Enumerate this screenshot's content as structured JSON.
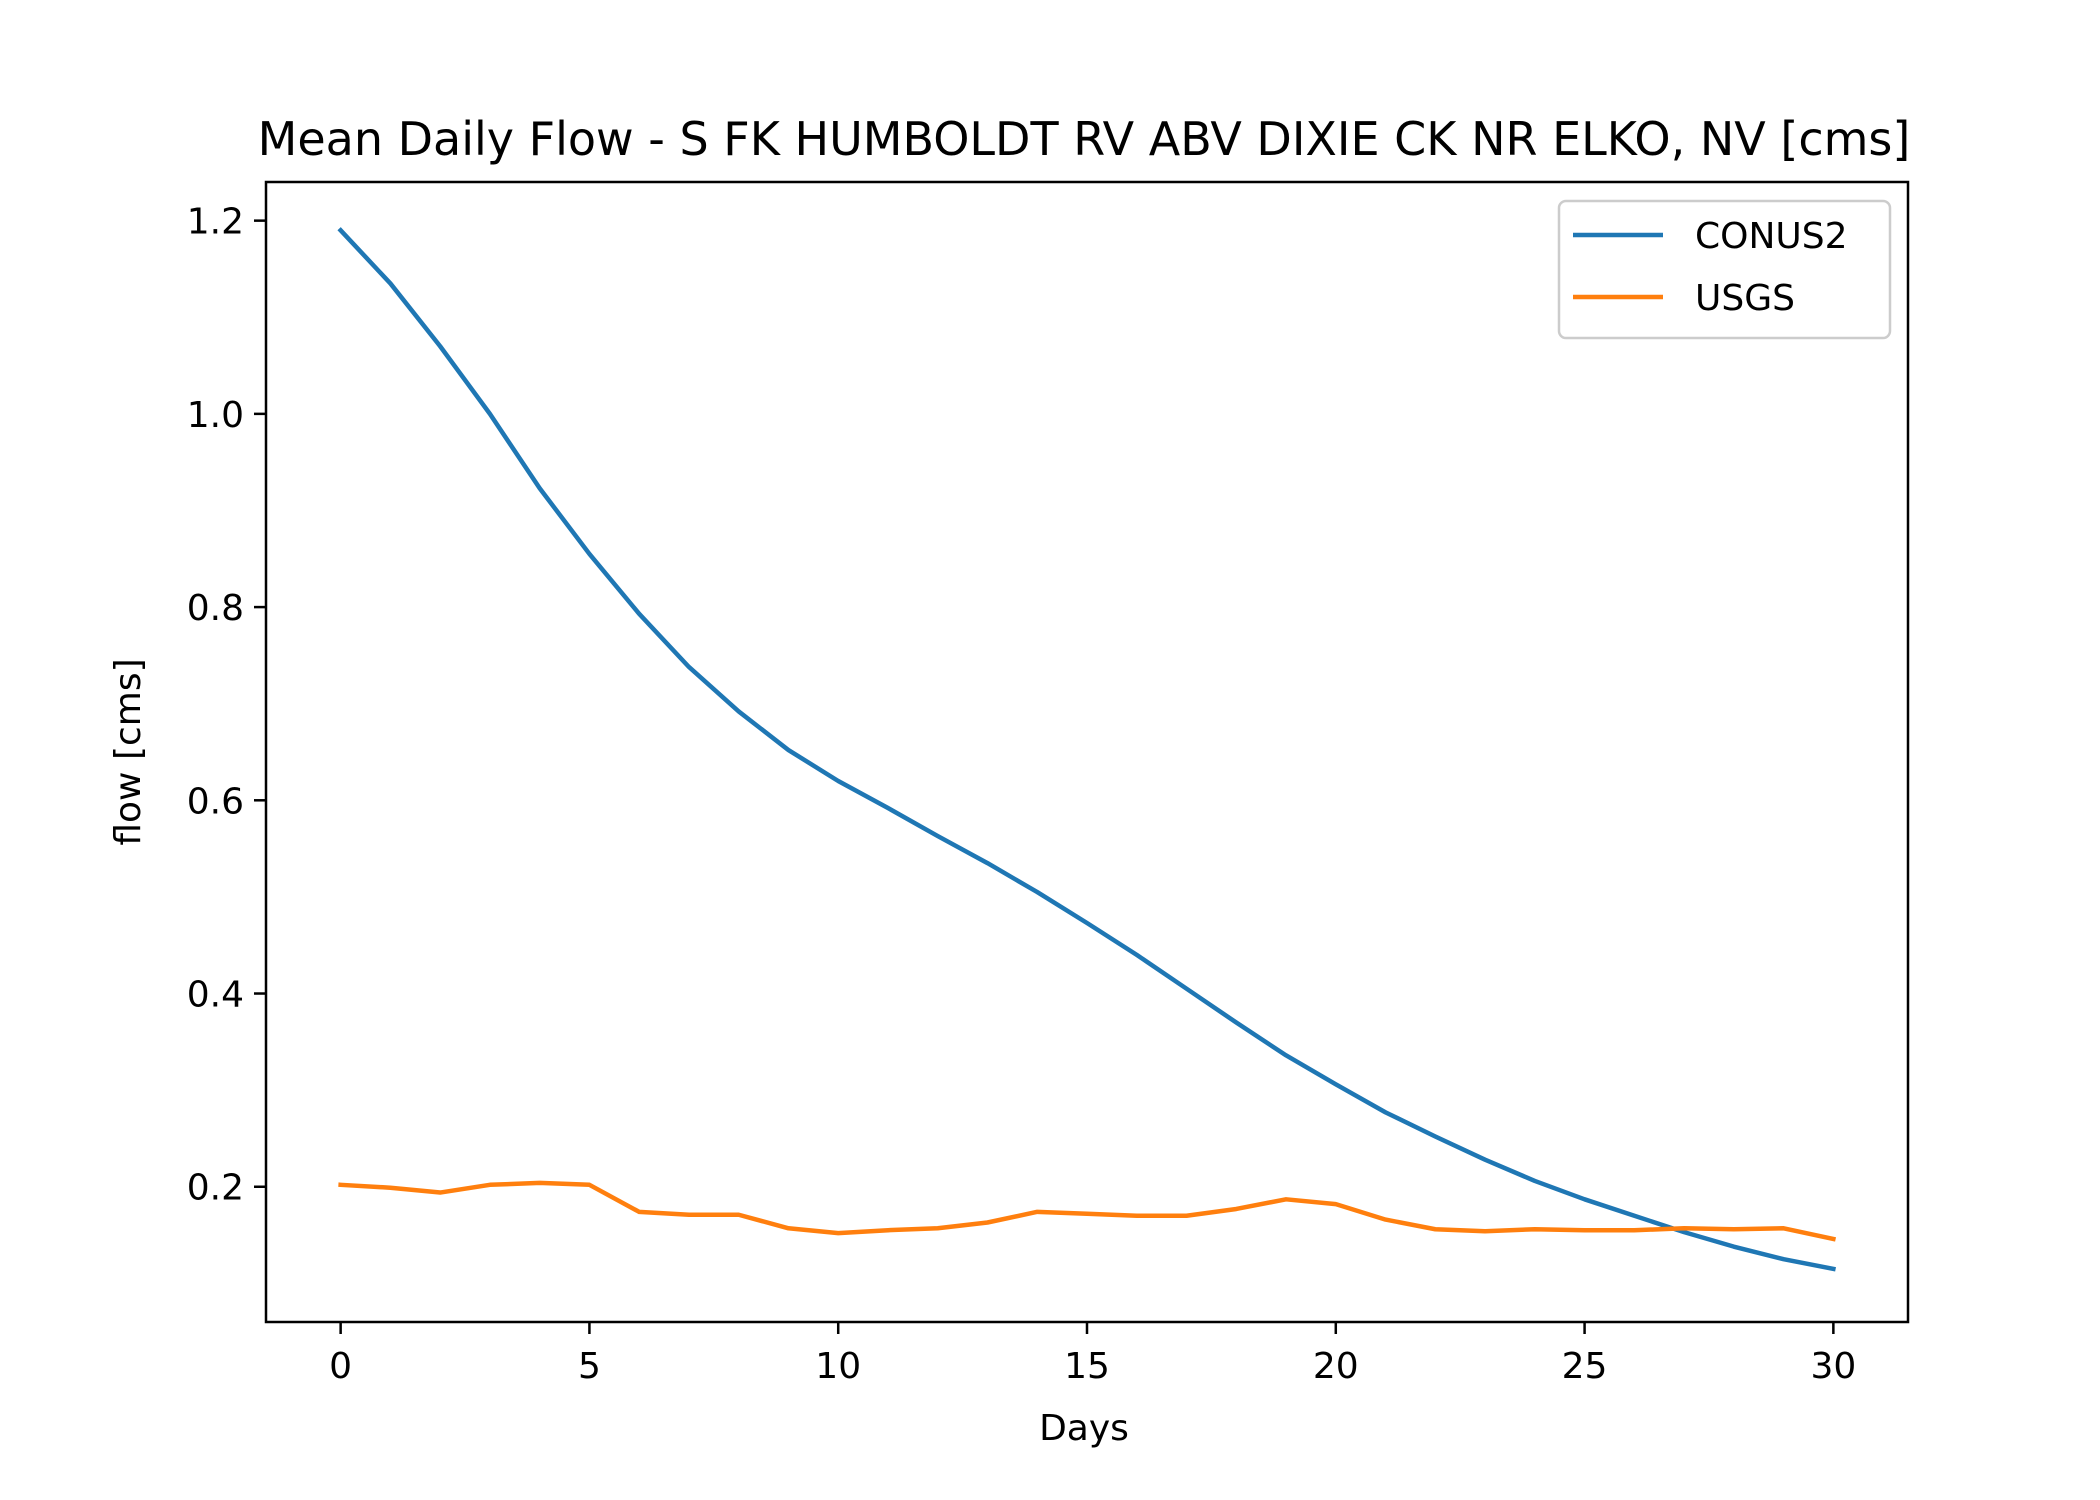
{
  "chart_data": {
    "type": "line",
    "title": "Mean Daily Flow - S FK HUMBOLDT RV ABV DIXIE CK NR ELKO, NV [cms]",
    "xlabel": "Days",
    "ylabel": "flow [cms]",
    "xlim": [
      -1.5,
      31.5
    ],
    "ylim": [
      0.06,
      1.24
    ],
    "xticks": [
      0,
      5,
      10,
      15,
      20,
      25,
      30
    ],
    "xtick_labels": [
      "0",
      "5",
      "10",
      "15",
      "20",
      "25",
      "30"
    ],
    "yticks": [
      0.2,
      0.4,
      0.6,
      0.8,
      1.0,
      1.2
    ],
    "ytick_labels": [
      "0.2",
      "0.4",
      "0.6",
      "0.8",
      "1.0",
      "1.2"
    ],
    "grid": false,
    "legend_position": "top-right",
    "x": [
      0,
      1,
      2,
      3,
      4,
      5,
      6,
      7,
      8,
      9,
      10,
      11,
      12,
      13,
      14,
      15,
      16,
      17,
      18,
      19,
      20,
      21,
      22,
      23,
      24,
      25,
      26,
      27,
      28,
      29,
      30
    ],
    "series": [
      {
        "name": "CONUS2",
        "color": "#1f77b4",
        "values": [
          1.19,
          1.135,
          1.07,
          1.0,
          0.923,
          0.855,
          0.793,
          0.738,
          0.692,
          0.652,
          0.62,
          0.592,
          0.563,
          0.535,
          0.505,
          0.473,
          0.44,
          0.405,
          0.37,
          0.336,
          0.306,
          0.277,
          0.252,
          0.228,
          0.206,
          0.187,
          0.17,
          0.153,
          0.138,
          0.125,
          0.115
        ]
      },
      {
        "name": "USGS",
        "color": "#ff7f0e",
        "values": [
          0.202,
          0.199,
          0.194,
          0.202,
          0.204,
          0.202,
          0.174,
          0.171,
          0.171,
          0.157,
          0.152,
          0.155,
          0.157,
          0.163,
          0.174,
          0.172,
          0.17,
          0.17,
          0.177,
          0.187,
          0.182,
          0.166,
          0.156,
          0.154,
          0.156,
          0.155,
          0.155,
          0.157,
          0.156,
          0.157,
          0.146
        ]
      }
    ]
  }
}
